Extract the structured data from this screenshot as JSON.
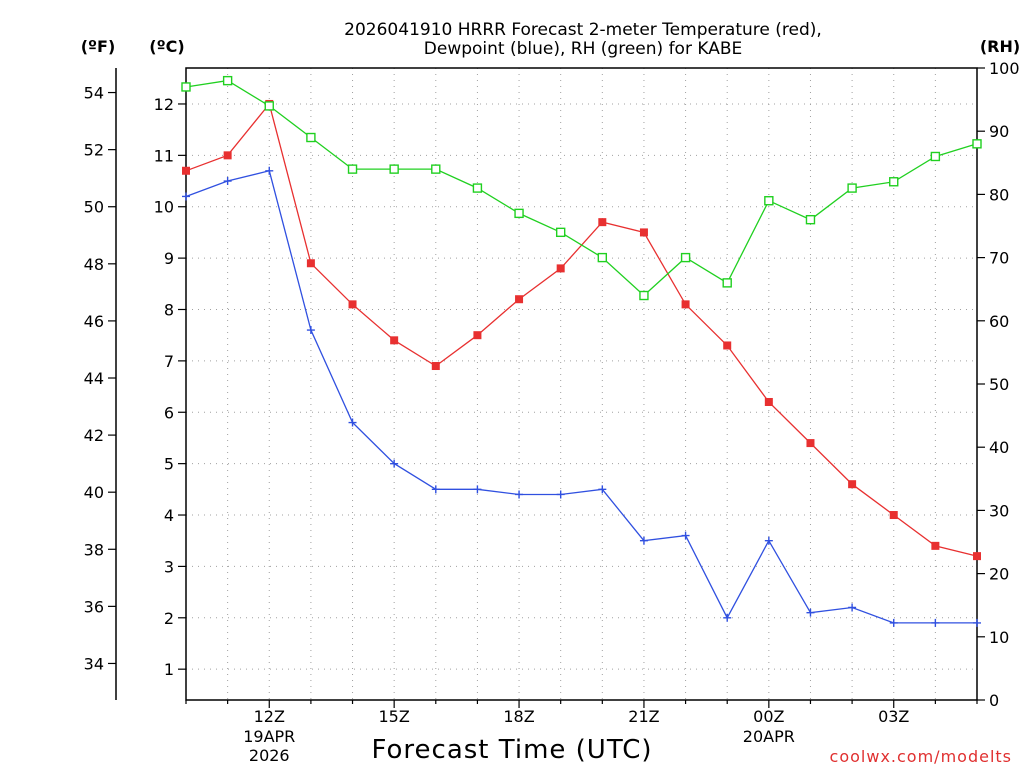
{
  "chart_data": {
    "type": "line",
    "title_line1": "2026041910 HRRR Forecast 2-meter Temperature (red),",
    "title_line2": "Dewpoint (blue), RH (green) for KABE",
    "xlabel": "Forecast Time (UTC)",
    "credit": "coolwx.com/modelts",
    "units": {
      "fahrenheit": "(ºF)",
      "celsius": "(ºC)",
      "rh": "(RH)"
    },
    "x_hours": [
      10,
      11,
      12,
      13,
      14,
      15,
      16,
      17,
      18,
      19,
      20,
      21,
      22,
      23,
      24,
      25,
      26,
      27,
      28,
      29
    ],
    "x_ticks": [
      {
        "hour": 12,
        "label": "12Z",
        "label2": "19APR",
        "label3": "2026"
      },
      {
        "hour": 15,
        "label": "15Z"
      },
      {
        "hour": 18,
        "label": "18Z"
      },
      {
        "hour": 21,
        "label": "21Z"
      },
      {
        "hour": 24,
        "label": "00Z",
        "label2": "20APR"
      },
      {
        "hour": 27,
        "label": "03Z"
      }
    ],
    "xlim": [
      10,
      29
    ],
    "ylim_c": [
      0.4,
      12.7
    ],
    "ylim_rh": [
      0,
      100
    ],
    "celsius_ticks": [
      1,
      2,
      3,
      4,
      5,
      6,
      7,
      8,
      9,
      10,
      11,
      12
    ],
    "fahrenheit_ticks": [
      34,
      36,
      38,
      40,
      42,
      44,
      46,
      48,
      50,
      52,
      54
    ],
    "rh_ticks": [
      0,
      10,
      20,
      30,
      40,
      50,
      60,
      70,
      80,
      90,
      100
    ],
    "series": [
      {
        "name": "Temperature",
        "axis": "celsius",
        "color": "#e83030",
        "marker": "filled-square",
        "values": [
          10.7,
          11.0,
          12.0,
          8.9,
          8.1,
          7.4,
          6.9,
          7.5,
          8.2,
          8.8,
          9.7,
          9.5,
          8.1,
          7.3,
          6.2,
          5.4,
          4.6,
          4.0,
          3.4,
          3.2
        ]
      },
      {
        "name": "Dewpoint",
        "axis": "celsius",
        "color": "#3050e0",
        "marker": "plus",
        "values": [
          10.2,
          10.5,
          10.7,
          7.6,
          5.8,
          5.0,
          4.5,
          4.5,
          4.4,
          4.4,
          4.5,
          3.5,
          3.6,
          2.0,
          3.5,
          2.1,
          2.2,
          1.9,
          1.9,
          1.9
        ]
      },
      {
        "name": "RH",
        "axis": "rh",
        "color": "#20d020",
        "marker": "open-square",
        "values": [
          97,
          98,
          94,
          89,
          84,
          84,
          84,
          81,
          77,
          74,
          70,
          64,
          70,
          66,
          79,
          76,
          81,
          82,
          86,
          88
        ]
      }
    ]
  }
}
